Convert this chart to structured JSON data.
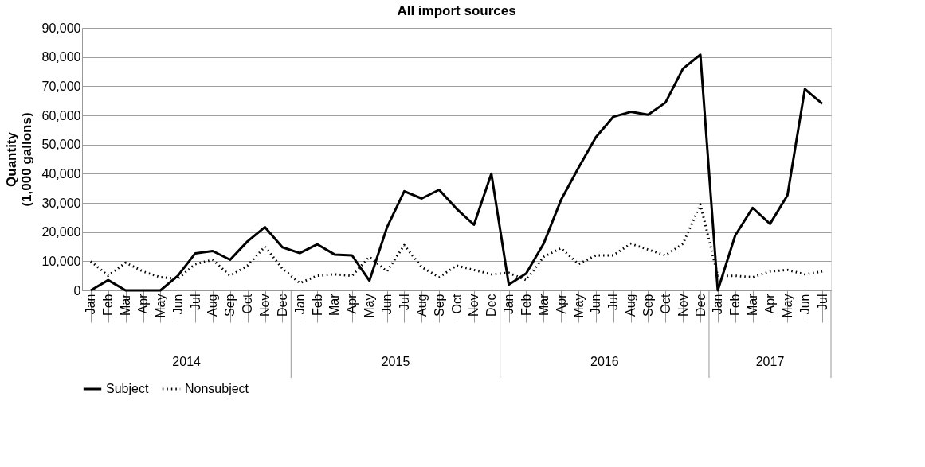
{
  "chart_data": {
    "type": "line",
    "title": "All import sources",
    "ylabel": "Quantity\n(1,000 gallons)",
    "categories": [
      "Jan",
      "Feb",
      "Mar",
      "Apr",
      "May",
      "Jun",
      "Jul",
      "Aug",
      "Sep",
      "Oct",
      "Nov",
      "Dec",
      "Jan",
      "Feb",
      "Mar",
      "Apr",
      "May",
      "Jun",
      "Jul",
      "Aug",
      "Sep",
      "Oct",
      "Nov",
      "Dec",
      "Jan",
      "Feb",
      "Mar",
      "Apr",
      "May",
      "Jun",
      "Jul",
      "Aug",
      "Sep",
      "Oct",
      "Nov",
      "Dec",
      "Jan",
      "Feb",
      "Mar",
      "Apr",
      "May",
      "Jun",
      "Jul"
    ],
    "series": [
      {
        "name": "Subject",
        "color": "#000000",
        "line_style": "solid",
        "values": [
          0,
          3500,
          0,
          0,
          0,
          5000,
          12700,
          13500,
          10500,
          16800,
          21700,
          14800,
          12800,
          15800,
          12300,
          12000,
          3300,
          21500,
          34000,
          31500,
          34500,
          28000,
          22500,
          40000,
          2000,
          5800,
          16000,
          31000,
          42000,
          52500,
          59500,
          61200,
          60200,
          64400,
          76000,
          80800,
          0,
          18800,
          28300,
          22800,
          32600,
          69000,
          64000
        ]
      },
      {
        "name": "Nonsubject",
        "color": "#000000",
        "line_style": "dotted",
        "values": [
          10000,
          5000,
          9500,
          6500,
          4500,
          4000,
          9000,
          10500,
          5000,
          8500,
          15000,
          7500,
          2500,
          5000,
          5500,
          5000,
          11500,
          6500,
          15500,
          8000,
          4500,
          8500,
          7000,
          5500,
          6000,
          3500,
          11500,
          14500,
          9000,
          12000,
          12000,
          16000,
          14000,
          12000,
          16000,
          29500,
          5000,
          5000,
          4500,
          6500,
          7000,
          5500,
          6500
        ]
      }
    ],
    "ylim": [
      0,
      90000
    ],
    "yticks": [
      {
        "value": 0,
        "label": "0"
      },
      {
        "value": 10000,
        "label": "10,000"
      },
      {
        "value": 20000,
        "label": "20,000"
      },
      {
        "value": 30000,
        "label": "30,000"
      },
      {
        "value": 40000,
        "label": "40,000"
      },
      {
        "value": 50000,
        "label": "50,000"
      },
      {
        "value": 60000,
        "label": "60,000"
      },
      {
        "value": 70000,
        "label": "70,000"
      },
      {
        "value": 80000,
        "label": "80,000"
      },
      {
        "value": 90000,
        "label": "90,000"
      }
    ],
    "annotations": [
      "2014",
      "2015",
      "2016",
      "2017"
    ],
    "grid": "y",
    "legend": "bottom"
  }
}
